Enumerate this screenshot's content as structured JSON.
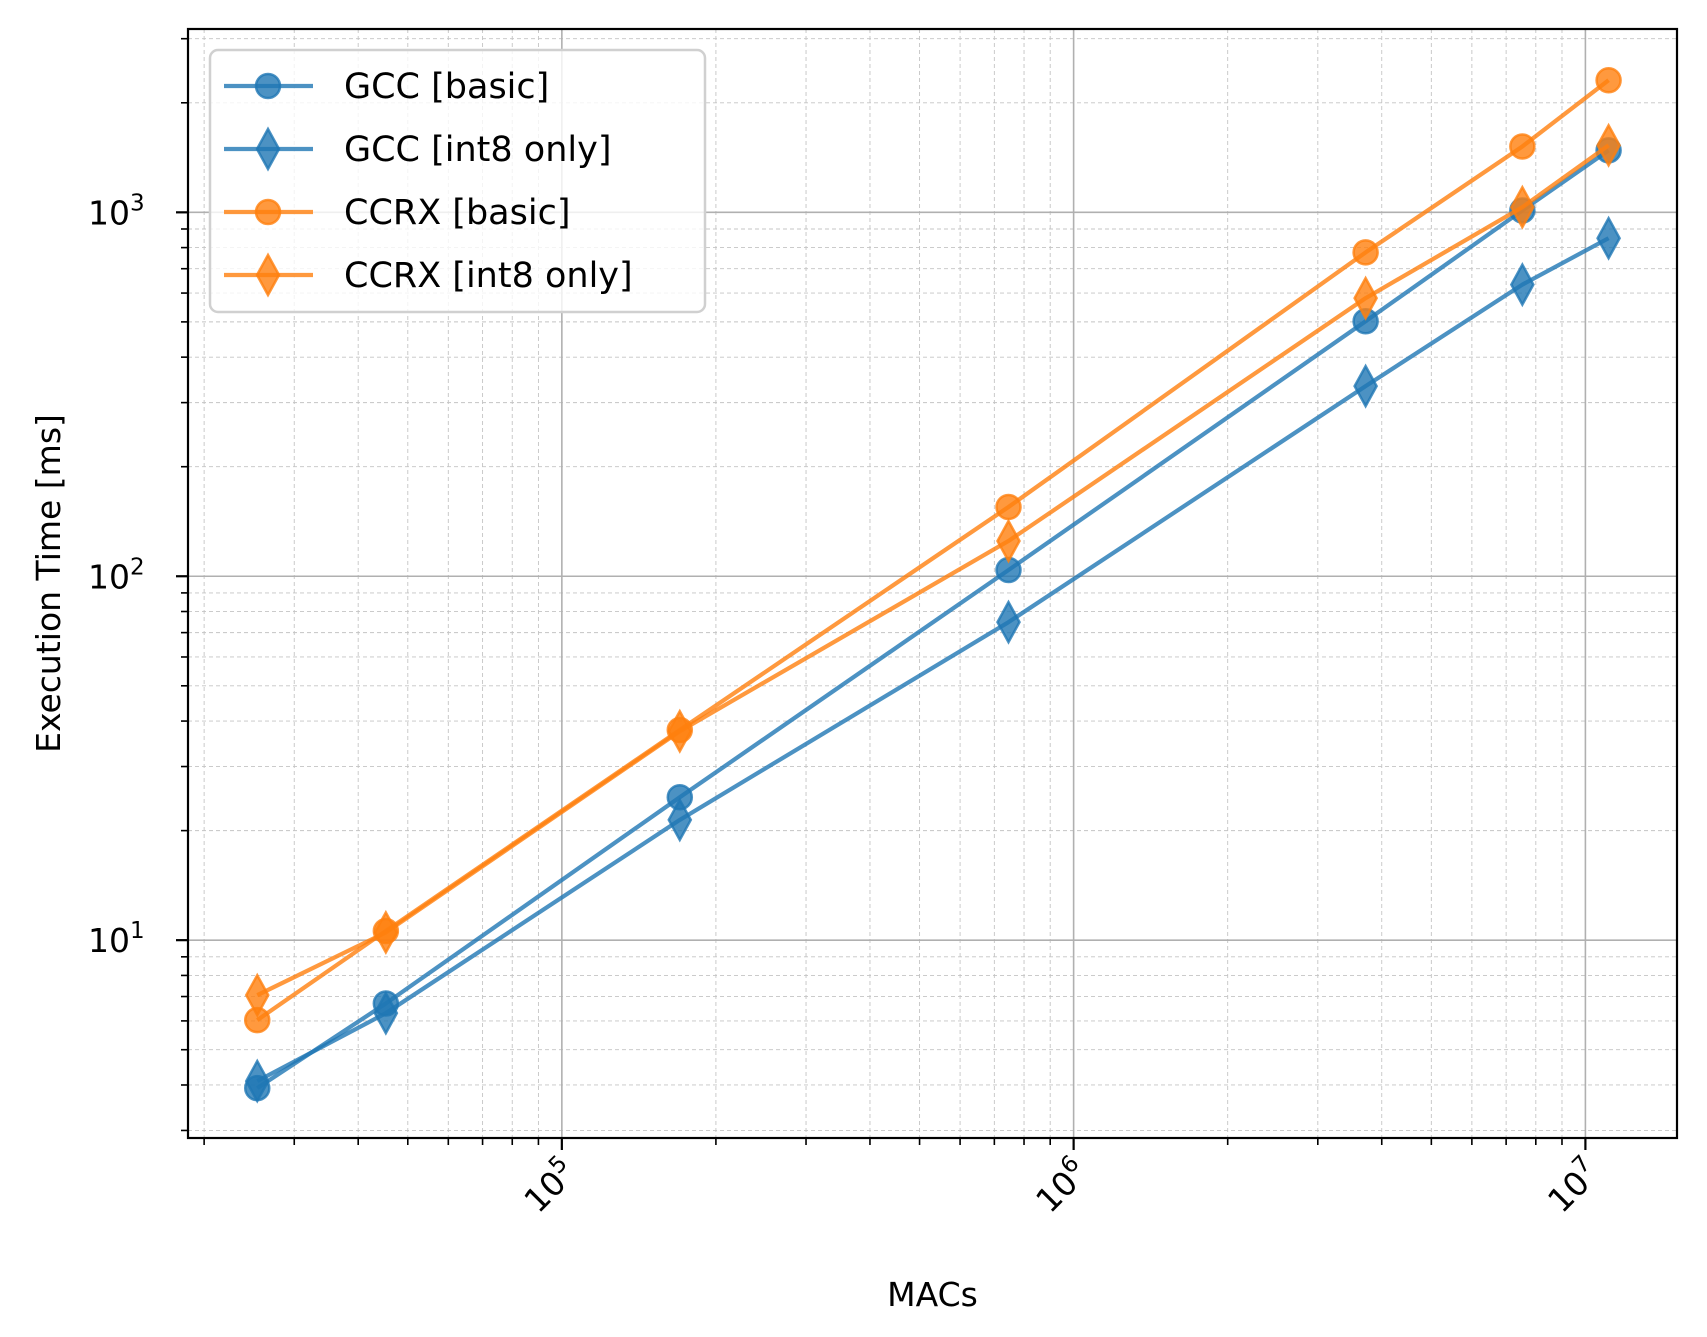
{
  "chart_data": {
    "type": "line",
    "title": "",
    "xlabel": "MACs",
    "ylabel": "Execution Time [ms]",
    "xscale": "log",
    "yscale": "log",
    "xlim": [
      18600,
      15100000
    ],
    "ylim": [
      2.86,
      3190
    ],
    "grid": "major and minor",
    "legend_position": "top-left",
    "x_tick_labels": [
      {
        "value": 100000,
        "base": "10",
        "exp": "5"
      },
      {
        "value": 1000000,
        "base": "10",
        "exp": "6"
      },
      {
        "value": 10000000,
        "base": "10",
        "exp": "7"
      }
    ],
    "y_tick_labels": [
      {
        "value": 10,
        "base": "10",
        "exp": "1"
      },
      {
        "value": 100,
        "base": "10",
        "exp": "2"
      },
      {
        "value": 1000,
        "base": "10",
        "exp": "3"
      }
    ],
    "x": [
      25400,
      45300,
      170000,
      746000,
      3720000,
      7530000,
      11100000
    ],
    "series": [
      {
        "name": "GCC [basic]",
        "marker": "circle",
        "color": "#1f77b4",
        "values": [
          3.92,
          6.7,
          24.7,
          104,
          502,
          1012,
          1480
        ]
      },
      {
        "name": "GCC [int8 only]",
        "marker": "thin_diamond",
        "color": "#1f77b4",
        "values": [
          4.1,
          6.3,
          21.4,
          74.8,
          333,
          633,
          849
        ]
      },
      {
        "name": "CCRX [basic]",
        "marker": "circle",
        "color": "#ff7f0e",
        "values": [
          6.03,
          10.6,
          37.8,
          155,
          776,
          1517,
          2307
        ]
      },
      {
        "name": "CCRX [int8 only]",
        "marker": "thin_diamond",
        "color": "#ff7f0e",
        "values": [
          7.06,
          10.5,
          37.5,
          125,
          581,
          1033,
          1528
        ]
      }
    ]
  }
}
